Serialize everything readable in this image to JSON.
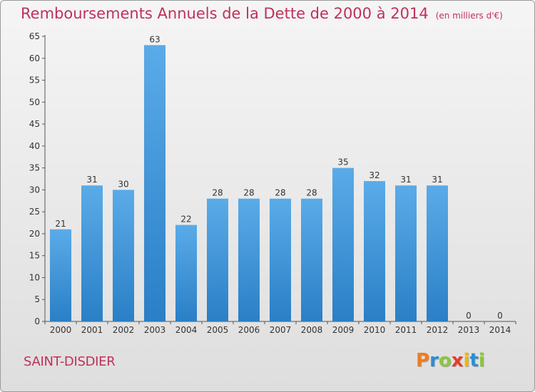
{
  "header": {
    "title": "Remboursements Annuels de la Dette de 2000 à 2014",
    "unit": "(en milliers d'€)"
  },
  "footer": {
    "commune": "SAINT-DISDIER",
    "logo_text": "Proxiti",
    "logo_colors": [
      "#f07d1a",
      "#2b8fd4",
      "#8cc63f",
      "#e63b2e",
      "#f2b705",
      "#2b8fd4",
      "#8cc63f"
    ]
  },
  "chart_data": {
    "type": "bar",
    "categories": [
      "2000",
      "2001",
      "2002",
      "2003",
      "2004",
      "2005",
      "2006",
      "2007",
      "2008",
      "2009",
      "2010",
      "2011",
      "2012",
      "2013",
      "2014"
    ],
    "values": [
      21,
      31,
      30,
      63,
      22,
      28,
      28,
      28,
      28,
      35,
      32,
      31,
      31,
      0,
      0
    ],
    "ylim": [
      0,
      65
    ],
    "yticks": [
      0,
      5,
      10,
      15,
      20,
      25,
      30,
      35,
      40,
      45,
      50,
      55,
      60,
      65
    ],
    "grid": false,
    "bar_color_top": "#5aabe8",
    "bar_color_bottom": "#2a7fc6"
  }
}
